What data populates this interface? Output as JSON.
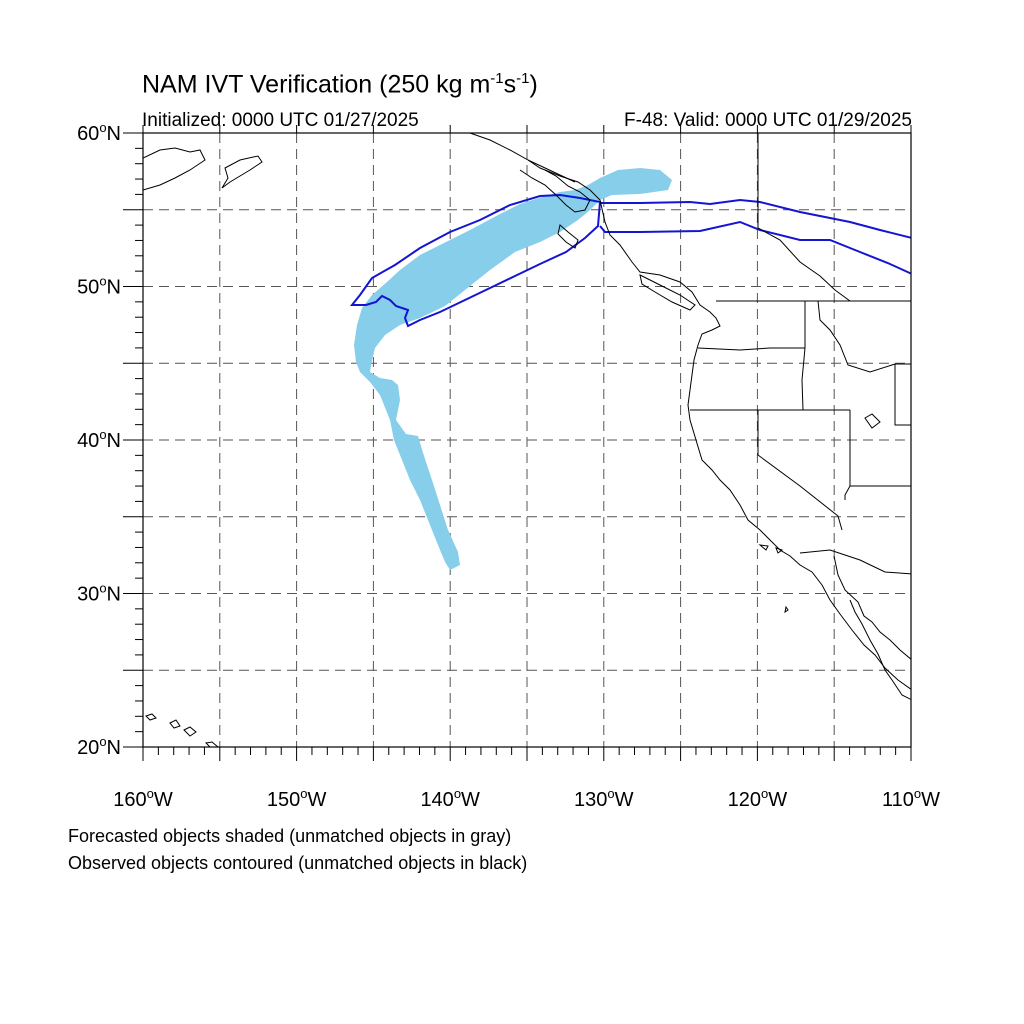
{
  "title": {
    "main": "NAM IVT Verification (250 kg m",
    "exp1": "-1",
    "mid": "s",
    "exp2": "-1",
    "close": ")"
  },
  "subtitle_left": "Initialized: 0000 UTC 01/27/2025",
  "subtitle_right": "F-48: Valid: 0000 UTC 01/29/2025",
  "map": {
    "lon_range": [
      -160,
      -110
    ],
    "lat_range": [
      20,
      60
    ],
    "grid": "dashed",
    "lat_labels": [
      "20",
      "30",
      "40",
      "50",
      "60"
    ],
    "lat_suffix": "N",
    "lon_labels": [
      "160",
      "150",
      "140",
      "130",
      "120",
      "110"
    ],
    "lon_suffix": "W",
    "degree_symbol": "o",
    "forecast_color": "#87ceeb",
    "observed_color": "#1414d2"
  },
  "footnotes": [
    "Forecasted objects shaded (unmatched objects in gray)",
    "Observed objects contoured (unmatched objects in black)"
  ]
}
